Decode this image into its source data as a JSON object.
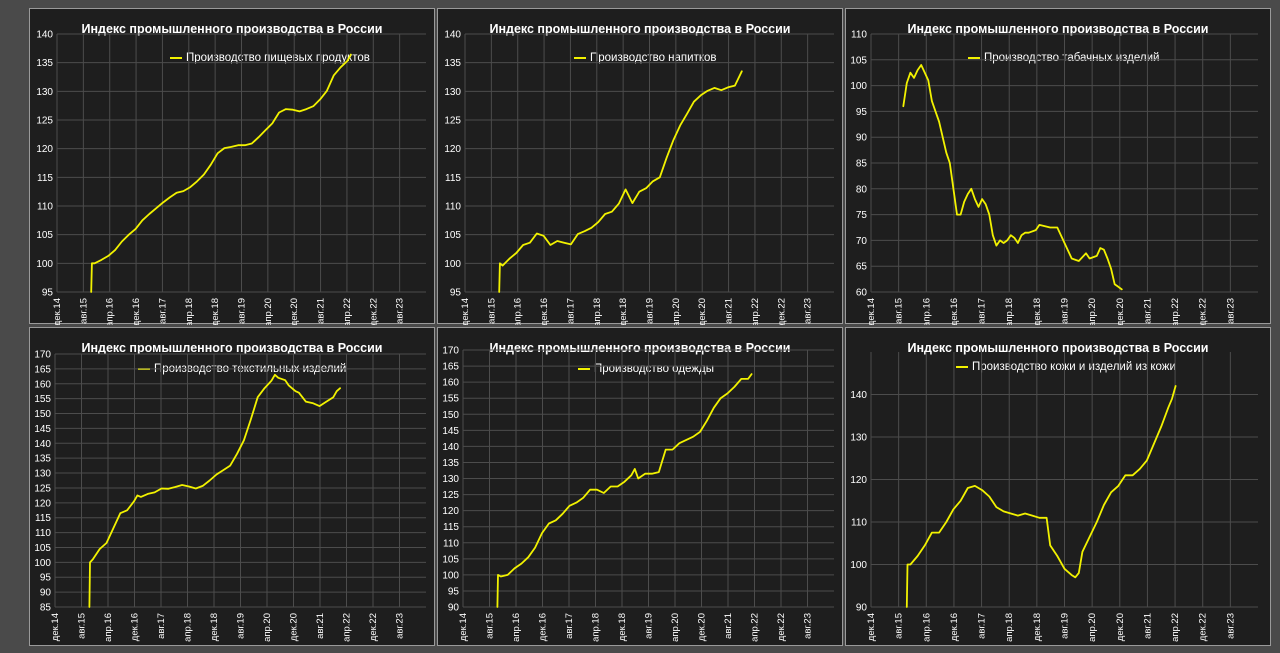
{
  "chart_data": [
    {
      "type": "line",
      "title": "Индекс промышленного производства в России",
      "series": [
        {
          "name": "Производство пищевых продуктов"
        }
      ],
      "ylim": [
        95,
        140
      ],
      "yticks": [
        95,
        100,
        105,
        110,
        115,
        120,
        125,
        130,
        135,
        140
      ],
      "xticks": [
        "дек.14",
        "авг.15",
        "апр.16",
        "дек.16",
        "авг.17",
        "апр.18",
        "дек.18",
        "авг.19",
        "апр.20",
        "дек.20",
        "авг.21",
        "апр.22",
        "дек.22",
        "авг.23"
      ],
      "xlim": [
        0,
        108
      ],
      "grid": true,
      "points": [
        [
          10,
          95
        ],
        [
          10.2,
          100
        ],
        [
          11,
          100
        ],
        [
          13,
          100.6
        ],
        [
          15,
          101.3
        ],
        [
          17,
          102.3
        ],
        [
          19,
          103.8
        ],
        [
          21,
          105
        ],
        [
          23,
          106
        ],
        [
          25,
          107.5
        ],
        [
          27,
          108.6
        ],
        [
          29,
          109.6
        ],
        [
          31,
          110.6
        ],
        [
          33,
          111.5
        ],
        [
          35,
          112.3
        ],
        [
          37,
          112.6
        ],
        [
          39,
          113.3
        ],
        [
          41,
          114.3
        ],
        [
          43,
          115.5
        ],
        [
          45,
          117.2
        ],
        [
          47,
          119.2
        ],
        [
          49,
          120.1
        ],
        [
          51,
          120.3
        ],
        [
          53,
          120.6
        ],
        [
          55,
          120.6
        ],
        [
          57,
          120.9
        ],
        [
          59,
          122
        ],
        [
          61,
          123.2
        ],
        [
          63,
          124.4
        ],
        [
          65,
          126.3
        ],
        [
          67,
          126.9
        ],
        [
          69,
          126.8
        ],
        [
          71,
          126.5
        ],
        [
          73,
          126.9
        ],
        [
          75,
          127.4
        ],
        [
          77,
          128.6
        ],
        [
          79,
          130.1
        ],
        [
          81,
          132.8
        ],
        [
          83,
          134.2
        ],
        [
          85,
          135.3
        ],
        [
          86,
          136.4
        ]
      ]
    },
    {
      "type": "line",
      "title": "Индекс промышленного производства в России",
      "series": [
        {
          "name": "Производство напитков"
        }
      ],
      "ylim": [
        95,
        140
      ],
      "yticks": [
        95,
        100,
        105,
        110,
        115,
        120,
        125,
        130,
        135,
        140
      ],
      "xticks": [
        "дек.14",
        "авг.15",
        "апр.16",
        "дек.16",
        "авг.17",
        "апр.18",
        "дек.18",
        "авг.19",
        "апр.20",
        "дек.20",
        "авг.21",
        "апр.22",
        "дек.22",
        "авг.23"
      ],
      "xlim": [
        0,
        108
      ],
      "grid": true,
      "points": [
        [
          10,
          95
        ],
        [
          10.2,
          100
        ],
        [
          11,
          99.6
        ],
        [
          13,
          100.8
        ],
        [
          15,
          101.8
        ],
        [
          17,
          103.2
        ],
        [
          19,
          103.6
        ],
        [
          21,
          105.2
        ],
        [
          23,
          104.8
        ],
        [
          25,
          103.2
        ],
        [
          27,
          103.9
        ],
        [
          29,
          103.6
        ],
        [
          31,
          103.3
        ],
        [
          33,
          105.1
        ],
        [
          35,
          105.6
        ],
        [
          37,
          106.2
        ],
        [
          39,
          107.2
        ],
        [
          41,
          108.6
        ],
        [
          43,
          109
        ],
        [
          45,
          110.4
        ],
        [
          47,
          112.9
        ],
        [
          49,
          110.5
        ],
        [
          51,
          112.5
        ],
        [
          53,
          113.1
        ],
        [
          55,
          114.3
        ],
        [
          57,
          115
        ],
        [
          59,
          118.4
        ],
        [
          61,
          121.5
        ],
        [
          63,
          124.1
        ],
        [
          65,
          126.1
        ],
        [
          67,
          128.2
        ],
        [
          69,
          129.3
        ],
        [
          71,
          130.1
        ],
        [
          73,
          130.6
        ],
        [
          75,
          130.2
        ],
        [
          77,
          130.7
        ],
        [
          79,
          131
        ],
        [
          81,
          133.5
        ]
      ]
    },
    {
      "type": "line",
      "title": "Индекс промышленного производства в России",
      "series": [
        {
          "name": "Производство табачных изделий"
        }
      ],
      "ylim": [
        60,
        110
      ],
      "yticks": [
        60,
        65,
        70,
        75,
        80,
        85,
        90,
        95,
        100,
        105,
        110
      ],
      "xticks": [
        "дек.14",
        "авг.15",
        "апр.16",
        "дек.16",
        "авг.17",
        "апр.18",
        "дек.18",
        "авг.19",
        "апр.20",
        "дек.20",
        "авг.21",
        "апр.22",
        "дек.22",
        "авг.23"
      ],
      "xlim": [
        0,
        108
      ],
      "grid": true,
      "points": [
        [
          9,
          96
        ],
        [
          10,
          100.5
        ],
        [
          11,
          102.5
        ],
        [
          12,
          101.5
        ],
        [
          13,
          103
        ],
        [
          14,
          104
        ],
        [
          15,
          102.5
        ],
        [
          16,
          101
        ],
        [
          17,
          97
        ],
        [
          18,
          95
        ],
        [
          19,
          93
        ],
        [
          20,
          90
        ],
        [
          21,
          87
        ],
        [
          22,
          85
        ],
        [
          23,
          80
        ],
        [
          24,
          75
        ],
        [
          25,
          75
        ],
        [
          26,
          77.5
        ],
        [
          27,
          79
        ],
        [
          28,
          80
        ],
        [
          29,
          78
        ],
        [
          30,
          76.5
        ],
        [
          31,
          78
        ],
        [
          32,
          77
        ],
        [
          33,
          75
        ],
        [
          34,
          71
        ],
        [
          35,
          69
        ],
        [
          36,
          70
        ],
        [
          37,
          69.5
        ],
        [
          38,
          70
        ],
        [
          39,
          71
        ],
        [
          40,
          70.5
        ],
        [
          41,
          69.5
        ],
        [
          42,
          71
        ],
        [
          43,
          71.5
        ],
        [
          44,
          71.5
        ],
        [
          46,
          72
        ],
        [
          47,
          73
        ],
        [
          50,
          72.5
        ],
        [
          52,
          72.5
        ],
        [
          53,
          71
        ],
        [
          55,
          68
        ],
        [
          56,
          66.5
        ],
        [
          58,
          66
        ],
        [
          60,
          67.5
        ],
        [
          61,
          66.5
        ],
        [
          63,
          67
        ],
        [
          64,
          68.5
        ],
        [
          65,
          68.2
        ],
        [
          66,
          66.5
        ],
        [
          67,
          64.5
        ],
        [
          68,
          61.5
        ],
        [
          69,
          61
        ],
        [
          70,
          60.5
        ]
      ]
    },
    {
      "type": "line",
      "title": "Индекс промышленного производства в России",
      "series": [
        {
          "name": "Производство текстильных изделий"
        }
      ],
      "ylim": [
        85,
        170
      ],
      "yticks": [
        85,
        90,
        95,
        100,
        105,
        110,
        115,
        120,
        125,
        130,
        135,
        140,
        145,
        150,
        155,
        160,
        165,
        170
      ],
      "xticks": [
        "дек.14",
        "авг.15",
        "апр.16",
        "дек.16",
        "авг.17",
        "апр.18",
        "дек.18",
        "авг.19",
        "апр.20",
        "дек.20",
        "авг.21",
        "апр.22",
        "дек.22",
        "авг.23"
      ],
      "xlim": [
        0,
        108
      ],
      "grid": true,
      "points": [
        [
          10,
          85
        ],
        [
          10.2,
          100
        ],
        [
          11,
          101
        ],
        [
          13,
          104.5
        ],
        [
          15,
          106.5
        ],
        [
          17,
          111.5
        ],
        [
          19,
          116.5
        ],
        [
          21,
          117.5
        ],
        [
          23,
          120.5
        ],
        [
          24,
          122.5
        ],
        [
          25,
          122
        ],
        [
          27,
          123
        ],
        [
          29,
          123.5
        ],
        [
          31,
          124.8
        ],
        [
          33,
          124.7
        ],
        [
          35,
          125.3
        ],
        [
          37,
          126
        ],
        [
          39,
          125.5
        ],
        [
          41,
          124.8
        ],
        [
          43,
          125.7
        ],
        [
          45,
          127.5
        ],
        [
          47,
          129.5
        ],
        [
          49,
          131
        ],
        [
          51,
          132.5
        ],
        [
          53,
          136.5
        ],
        [
          55,
          141
        ],
        [
          57,
          148
        ],
        [
          59,
          155.5
        ],
        [
          61,
          158.5
        ],
        [
          63,
          161
        ],
        [
          64,
          163
        ],
        [
          65,
          162
        ],
        [
          67,
          161.2
        ],
        [
          68,
          159.5
        ],
        [
          70,
          157.5
        ],
        [
          71,
          157
        ],
        [
          73,
          154
        ],
        [
          75,
          153.5
        ],
        [
          77,
          152.5
        ],
        [
          79,
          154
        ],
        [
          81,
          155.5
        ],
        [
          82,
          157.5
        ],
        [
          83,
          158.5
        ]
      ]
    },
    {
      "type": "line",
      "title": "Индекс промышленного производства в России",
      "series": [
        {
          "name": "Производство одежды"
        }
      ],
      "ylim": [
        90,
        170
      ],
      "yticks": [
        90,
        95,
        100,
        105,
        110,
        115,
        120,
        125,
        130,
        135,
        140,
        145,
        150,
        155,
        160,
        165,
        170
      ],
      "xticks": [
        "дек.14",
        "авг.15",
        "апр.16",
        "дек.16",
        "авг.17",
        "апр.18",
        "дек.18",
        "авг.19",
        "апр.20",
        "дек.20",
        "авг.21",
        "апр.22",
        "дек.22",
        "авг.23"
      ],
      "xlim": [
        0,
        108
      ],
      "grid": true,
      "points": [
        [
          10,
          90
        ],
        [
          10.2,
          100
        ],
        [
          11,
          99.5
        ],
        [
          13,
          100
        ],
        [
          15,
          102
        ],
        [
          17,
          103.5
        ],
        [
          19,
          105.5
        ],
        [
          21,
          108.5
        ],
        [
          23,
          113
        ],
        [
          25,
          116
        ],
        [
          27,
          117
        ],
        [
          29,
          119
        ],
        [
          31,
          121.5
        ],
        [
          33,
          122.5
        ],
        [
          35,
          124
        ],
        [
          37,
          126.5
        ],
        [
          39,
          126.5
        ],
        [
          41,
          125.5
        ],
        [
          43,
          127.5
        ],
        [
          45,
          127.5
        ],
        [
          47,
          129
        ],
        [
          49,
          131
        ],
        [
          50,
          133
        ],
        [
          51,
          130
        ],
        [
          53,
          131.5
        ],
        [
          55,
          131.5
        ],
        [
          57,
          132
        ],
        [
          59,
          139
        ],
        [
          61,
          139
        ],
        [
          63,
          141
        ],
        [
          65,
          142
        ],
        [
          67,
          143
        ],
        [
          69,
          144.5
        ],
        [
          71,
          148
        ],
        [
          73,
          152
        ],
        [
          75,
          155
        ],
        [
          77,
          156.5
        ],
        [
          79,
          158.5
        ],
        [
          81,
          161
        ],
        [
          83,
          161
        ],
        [
          84,
          162.5
        ]
      ]
    },
    {
      "type": "line",
      "title": "Индекс промышленного производства в России",
      "series": [
        {
          "name": "Производство кожи и изделий из кожи"
        }
      ],
      "ylim": [
        90,
        150
      ],
      "yticks": [
        90,
        100,
        110,
        120,
        130,
        140
      ],
      "xticks": [
        "дек.14",
        "авг.15",
        "апр.16",
        "дек.16",
        "авг.17",
        "апр.18",
        "дек.18",
        "авг.19",
        "апр.20",
        "дек.20",
        "авг.21",
        "апр.22",
        "дек.22",
        "авг.23"
      ],
      "xlim": [
        0,
        108
      ],
      "grid": true,
      "points": [
        [
          10,
          90
        ],
        [
          10.2,
          100
        ],
        [
          11,
          100
        ],
        [
          13,
          102
        ],
        [
          15,
          104.5
        ],
        [
          17,
          107.5
        ],
        [
          19,
          107.5
        ],
        [
          21,
          110
        ],
        [
          23,
          113
        ],
        [
          25,
          115
        ],
        [
          27,
          118
        ],
        [
          29,
          118.5
        ],
        [
          31,
          117.5
        ],
        [
          33,
          116
        ],
        [
          35,
          113.5
        ],
        [
          37,
          112.5
        ],
        [
          39,
          112
        ],
        [
          41,
          111.5
        ],
        [
          43,
          112
        ],
        [
          45,
          111.5
        ],
        [
          47,
          111
        ],
        [
          49,
          111
        ],
        [
          50,
          104.5
        ],
        [
          52,
          102
        ],
        [
          54,
          99
        ],
        [
          56,
          97.5
        ],
        [
          57,
          97
        ],
        [
          58,
          98
        ],
        [
          59,
          103
        ],
        [
          61,
          106.5
        ],
        [
          63,
          110
        ],
        [
          65,
          114
        ],
        [
          67,
          117
        ],
        [
          69,
          118.5
        ],
        [
          71,
          121
        ],
        [
          73,
          121
        ],
        [
          75,
          122.5
        ],
        [
          77,
          124.5
        ],
        [
          79,
          128.5
        ],
        [
          81,
          132.5
        ],
        [
          83,
          137
        ],
        [
          84,
          139
        ],
        [
          85,
          142
        ]
      ]
    }
  ]
}
